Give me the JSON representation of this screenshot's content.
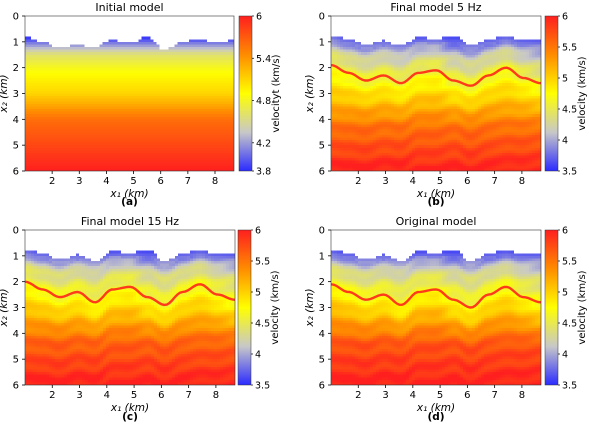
{
  "chart_data": [
    {
      "type": "heatmap",
      "panel_label": "(a)",
      "title": "Initial model",
      "xlabel": "x₁ (km)",
      "ylabel": "x₂ (km)",
      "xlim": [
        1.0,
        8.7
      ],
      "ylim": [
        0,
        6
      ],
      "x_ticks": [
        "2",
        "3",
        "4",
        "5",
        "6",
        "7",
        "8"
      ],
      "y_ticks": [
        "0",
        "1",
        "2",
        "3",
        "4",
        "5",
        "6"
      ],
      "y_inverted": true,
      "colorbar": {
        "label": "velocityt (km/s)",
        "ticks": [
          "3.8",
          "4.2",
          "4.8",
          "5.4",
          "6"
        ],
        "range": [
          3.8,
          6
        ],
        "colormap": [
          "#2b2bff",
          "#c8c8c8",
          "#ffff00",
          "#ff8c00",
          "#ff1f1f"
        ]
      },
      "model": {
        "style": "smooth",
        "top_surface_depth_km": [
          0.8,
          1.0,
          1.25,
          1.1,
          1.2,
          0.9,
          1.05,
          0.8,
          1.3,
          1.0,
          0.85,
          1.05,
          0.9
        ],
        "layer_boundary_depth_km": [],
        "velocity_profile": [
          {
            "depth_km": 0.8,
            "velocity": 3.8
          },
          {
            "depth_km": 1.5,
            "velocity": 4.6
          },
          {
            "depth_km": 2.2,
            "velocity": 4.9
          },
          {
            "depth_km": 3.0,
            "velocity": 5.1
          },
          {
            "depth_km": 4.0,
            "velocity": 5.6
          },
          {
            "depth_km": 6.0,
            "velocity": 6.0
          }
        ]
      }
    },
    {
      "type": "heatmap",
      "panel_label": "(b)",
      "title": "Final model 5 Hz",
      "xlabel": "x₁ (km)",
      "ylabel": "x₂ (km)",
      "xlim": [
        1.0,
        8.7
      ],
      "ylim": [
        0,
        6
      ],
      "x_ticks": [
        "2",
        "3",
        "4",
        "5",
        "6",
        "7",
        "8"
      ],
      "y_ticks": [
        "0",
        "1",
        "2",
        "3",
        "4",
        "5",
        "6"
      ],
      "y_inverted": true,
      "colorbar": {
        "label": "velocity (km/s)",
        "ticks": [
          "3.5",
          "4",
          "4.5",
          "5",
          "5.5",
          "6"
        ],
        "range": [
          3.5,
          6
        ],
        "colormap": [
          "#2b2bff",
          "#c8c8c8",
          "#ffff00",
          "#ff8c00",
          "#ff1f1f"
        ]
      },
      "model": {
        "style": "layered",
        "top_surface_depth_km": [
          0.75,
          0.9,
          1.1,
          0.95,
          1.15,
          0.8,
          0.9,
          0.75,
          1.15,
          0.9,
          0.8,
          0.95,
          0.85
        ],
        "layer_boundary_depth_km": [
          1.9,
          2.2,
          2.5,
          2.3,
          2.6,
          2.2,
          2.1,
          2.5,
          2.7,
          2.3,
          2.0,
          2.4,
          2.6
        ],
        "velocity_profile": [
          {
            "depth_km": 0.8,
            "velocity": 3.6
          },
          {
            "depth_km": 1.6,
            "velocity": 4.2
          },
          {
            "depth_km": 2.4,
            "velocity": 4.6
          },
          {
            "depth_km": 3.2,
            "velocity": 5.0
          },
          {
            "depth_km": 4.2,
            "velocity": 5.5
          },
          {
            "depth_km": 6.0,
            "velocity": 6.0
          }
        ]
      }
    },
    {
      "type": "heatmap",
      "panel_label": "(c)",
      "title": "Final model 15 Hz",
      "xlabel": "x₁ (km)",
      "ylabel": "x₂ (km)",
      "xlim": [
        1.0,
        8.7
      ],
      "ylim": [
        0,
        6
      ],
      "x_ticks": [
        "2",
        "3",
        "4",
        "5",
        "6",
        "7",
        "8"
      ],
      "y_ticks": [
        "0",
        "1",
        "2",
        "3",
        "4",
        "5",
        "6"
      ],
      "y_inverted": true,
      "colorbar": {
        "label": "velocity (km/s)",
        "ticks": [
          "3.5",
          "4",
          "4.5",
          "5",
          "5.5",
          "6"
        ],
        "range": [
          3.5,
          6
        ],
        "colormap": [
          "#2b2bff",
          "#c8c8c8",
          "#ffff00",
          "#ff8c00",
          "#ff1f1f"
        ]
      },
      "model": {
        "style": "layered",
        "top_surface_depth_km": [
          0.75,
          0.9,
          1.15,
          0.95,
          1.2,
          0.8,
          0.9,
          0.75,
          1.2,
          0.9,
          0.8,
          0.95,
          0.85
        ],
        "layer_boundary_depth_km": [
          2.0,
          2.3,
          2.6,
          2.4,
          2.8,
          2.3,
          2.2,
          2.6,
          2.9,
          2.4,
          2.1,
          2.5,
          2.7
        ],
        "velocity_profile": [
          {
            "depth_km": 0.8,
            "velocity": 3.6
          },
          {
            "depth_km": 1.6,
            "velocity": 4.3
          },
          {
            "depth_km": 2.5,
            "velocity": 4.7
          },
          {
            "depth_km": 3.3,
            "velocity": 5.1
          },
          {
            "depth_km": 4.3,
            "velocity": 5.6
          },
          {
            "depth_km": 6.0,
            "velocity": 6.0
          }
        ]
      }
    },
    {
      "type": "heatmap",
      "panel_label": "(d)",
      "title": "Original model",
      "xlabel": "x₁ (km)",
      "ylabel": "x₂ (km)",
      "xlim": [
        1.0,
        8.7
      ],
      "ylim": [
        0,
        6
      ],
      "x_ticks": [
        "2",
        "3",
        "4",
        "5",
        "6",
        "7",
        "8"
      ],
      "y_ticks": [
        "0",
        "1",
        "2",
        "3",
        "4",
        "5",
        "6"
      ],
      "y_inverted": true,
      "colorbar": {
        "label": "velocity (km/s)",
        "ticks": [
          "3.5",
          "4",
          "4.5",
          "5",
          "5.5",
          "6"
        ],
        "range": [
          3.5,
          6
        ],
        "colormap": [
          "#2b2bff",
          "#c8c8c8",
          "#ffff00",
          "#ff8c00",
          "#ff1f1f"
        ]
      },
      "model": {
        "style": "layered",
        "top_surface_depth_km": [
          0.75,
          0.9,
          1.15,
          0.95,
          1.2,
          0.8,
          0.9,
          0.75,
          1.2,
          0.9,
          0.8,
          0.95,
          0.85
        ],
        "layer_boundary_depth_km": [
          2.1,
          2.4,
          2.7,
          2.5,
          2.9,
          2.4,
          2.3,
          2.7,
          3.0,
          2.5,
          2.2,
          2.6,
          2.8
        ],
        "velocity_profile": [
          {
            "depth_km": 0.8,
            "velocity": 3.6
          },
          {
            "depth_km": 1.6,
            "velocity": 4.3
          },
          {
            "depth_km": 2.6,
            "velocity": 4.8
          },
          {
            "depth_km": 3.4,
            "velocity": 5.2
          },
          {
            "depth_km": 4.4,
            "velocity": 5.7
          },
          {
            "depth_km": 6.0,
            "velocity": 6.0
          }
        ]
      }
    }
  ]
}
